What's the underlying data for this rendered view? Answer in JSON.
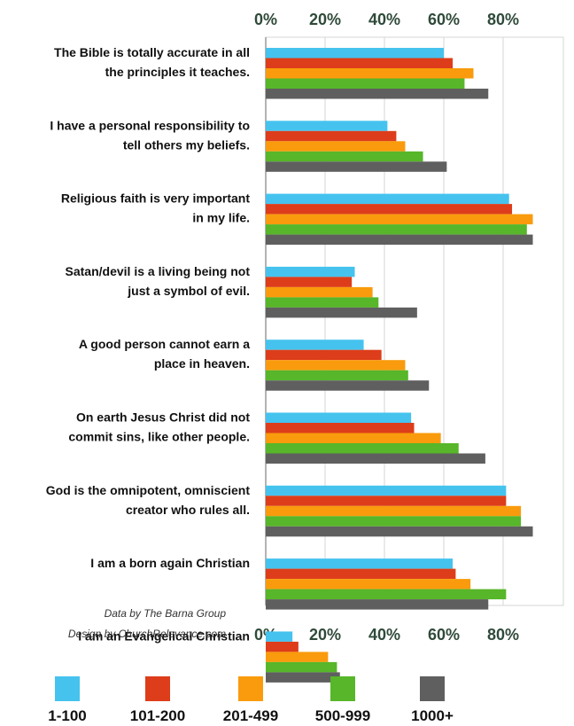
{
  "chart_data": {
    "type": "bar",
    "orientation": "horizontal",
    "categories": [
      [
        "The Bible is totally accurate in all",
        "the principles it teaches."
      ],
      [
        "I have a personal responsibility to",
        "tell others my beliefs."
      ],
      [
        "Religious faith is very important",
        "in my life."
      ],
      [
        "Satan/devil is a living being not",
        "just a symbol of evil."
      ],
      [
        "A good person cannot earn a",
        "place in heaven."
      ],
      [
        "On earth Jesus Christ did not",
        "commit sins, like other people."
      ],
      [
        "God is the omnipotent, omniscient",
        "creator who rules all."
      ],
      [
        "I am a born again Christian"
      ],
      [
        "I am an Evangelical Christian"
      ]
    ],
    "series": [
      {
        "name": "1-100",
        "color": "#45c3ee",
        "values": [
          60,
          41,
          82,
          30,
          33,
          49,
          81,
          63,
          9
        ]
      },
      {
        "name": "101-200",
        "color": "#dd3d1a",
        "values": [
          63,
          44,
          83,
          29,
          39,
          50,
          81,
          64,
          11
        ]
      },
      {
        "name": "201-499",
        "color": "#f99b0c",
        "values": [
          70,
          47,
          90,
          36,
          47,
          59,
          86,
          69,
          21
        ]
      },
      {
        "name": "500-999",
        "color": "#57b629",
        "values": [
          67,
          53,
          88,
          38,
          48,
          65,
          86,
          81,
          24
        ]
      },
      {
        "name": "1000+",
        "color": "#5f5f5f",
        "values": [
          75,
          61,
          90,
          51,
          55,
          74,
          90,
          75,
          25
        ]
      }
    ],
    "xticks": [
      "0%",
      "20%",
      "40%",
      "60%",
      "80%"
    ],
    "xlim": [
      0,
      100
    ],
    "grid": true,
    "legend_position": "bottom",
    "credits": [
      "Data by The Barna Group",
      "Design by ChurchRelevance.com"
    ]
  }
}
